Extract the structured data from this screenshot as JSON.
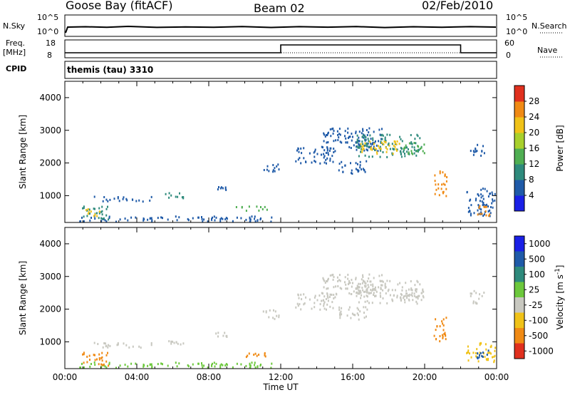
{
  "header": {
    "station": "Goose Bay (fitACF)",
    "beam": "Beam 02",
    "date": "02/Feb/2010"
  },
  "info_panels": {
    "nsky_label": "N.Sky",
    "nsky_ticks": [
      "10^5",
      "10^0"
    ],
    "nsearch_label": "N.Search",
    "nsearch_ticks": [
      "10^5",
      "10^0"
    ],
    "freq_label": "Freq.",
    "freq_unit": "[MHz]",
    "freq_ticks": [
      "18",
      "8"
    ],
    "nave_label": "Nave",
    "nave_ticks": [
      "60",
      "0"
    ],
    "cpid_label": "CPID",
    "cpid_value": "themis (tau) 3310",
    "freq_trace": [
      {
        "t": 0,
        "mhz": 10.3
      },
      {
        "t": 12,
        "mhz": 10.3
      },
      {
        "t": 12,
        "mhz": 15.8
      },
      {
        "t": 22,
        "mhz": 15.8
      },
      {
        "t": 22,
        "mhz": 10.3
      },
      {
        "t": 24,
        "mhz": 10.3
      }
    ]
  },
  "chart_data": [
    {
      "type": "heatmap",
      "title": "Power",
      "ylabel": "Slant Range [km]",
      "xlabel": "",
      "x_ticks": [
        "00:00",
        "04:00",
        "08:00",
        "12:00",
        "16:00",
        "20:00",
        "00:00"
      ],
      "xlim_hours": [
        0,
        24
      ],
      "ylim": [
        180,
        4500
      ],
      "y_ticks": [
        1000,
        2000,
        3000,
        4000
      ],
      "colorbar": {
        "label": "Power [dB]",
        "tick_labels": [
          "4",
          "8",
          "12",
          "16",
          "20",
          "24",
          "28"
        ],
        "colors": [
          "#1a20e6",
          "#1f5aa8",
          "#2e8a7c",
          "#4fae52",
          "#a8d02c",
          "#f0c218",
          "#f08a14",
          "#e0301e"
        ]
      },
      "regions": [
        {
          "t0": 0.8,
          "t1": 11.5,
          "r0": 230,
          "r1": 400,
          "color": "#1f5aa8"
        },
        {
          "t0": 0.9,
          "t1": 2.4,
          "r0": 300,
          "r1": 700,
          "color": "#2e8a7c"
        },
        {
          "t0": 1.1,
          "t1": 1.9,
          "r0": 400,
          "r1": 650,
          "color": "#f0c218"
        },
        {
          "t0": 1.6,
          "t1": 4.8,
          "r0": 850,
          "r1": 1000,
          "color": "#1f5aa8"
        },
        {
          "t0": 5.3,
          "t1": 6.6,
          "r0": 950,
          "r1": 1120,
          "color": "#2e8a7c"
        },
        {
          "t0": 8.2,
          "t1": 9.0,
          "r0": 1180,
          "r1": 1320,
          "color": "#1f5aa8"
        },
        {
          "t0": 9.5,
          "t1": 11.3,
          "r0": 560,
          "r1": 700,
          "color": "#4fae52"
        },
        {
          "t0": 11.0,
          "t1": 11.9,
          "r0": 1700,
          "r1": 2000,
          "color": "#1f5aa8"
        },
        {
          "t0": 12.8,
          "t1": 15.0,
          "r0": 2000,
          "r1": 2500,
          "color": "#1f5aa8"
        },
        {
          "t0": 14.2,
          "t1": 17.6,
          "r0": 2400,
          "r1": 3100,
          "color": "#1f5aa8"
        },
        {
          "t0": 16.2,
          "t1": 19.8,
          "r0": 2200,
          "r1": 2900,
          "color": "#2e8a7c"
        },
        {
          "t0": 16.4,
          "t1": 18.6,
          "r0": 2300,
          "r1": 2700,
          "color": "#f0c218"
        },
        {
          "t0": 15.2,
          "t1": 16.8,
          "r0": 1700,
          "r1": 2100,
          "color": "#1f5aa8"
        },
        {
          "t0": 18.8,
          "t1": 20.0,
          "r0": 2300,
          "r1": 2650,
          "color": "#4fae52"
        },
        {
          "t0": 20.5,
          "t1": 21.2,
          "r0": 1000,
          "r1": 1800,
          "color": "#f08a14"
        },
        {
          "t0": 22.5,
          "t1": 23.3,
          "r0": 2200,
          "r1": 2600,
          "color": "#1f5aa8"
        },
        {
          "t0": 22.3,
          "t1": 23.9,
          "r0": 400,
          "r1": 1250,
          "color": "#1f5aa8"
        },
        {
          "t0": 22.9,
          "t1": 23.6,
          "r0": 400,
          "r1": 800,
          "color": "#f08a14"
        }
      ]
    },
    {
      "type": "heatmap",
      "title": "Velocity",
      "ylabel": "Slant Range [km]",
      "xlabel": "Time UT",
      "x_ticks": [
        "00:00",
        "04:00",
        "08:00",
        "12:00",
        "16:00",
        "20:00",
        "00:00"
      ],
      "xlim_hours": [
        0,
        24
      ],
      "ylim": [
        180,
        4500
      ],
      "y_ticks": [
        1000,
        2000,
        3000,
        4000
      ],
      "colorbar": {
        "label": "Velocity [m s^-1]",
        "tick_labels": [
          "1000",
          "500",
          "100",
          "25",
          "-25",
          "-100",
          "-500",
          "-1000"
        ],
        "colors": [
          "#1a20e6",
          "#1f5aa8",
          "#2e8a7c",
          "#6cc83c",
          "#c8c8c0",
          "#f0c218",
          "#f08a14",
          "#e0301e"
        ]
      },
      "regions": [
        {
          "t0": 0.8,
          "t1": 11.5,
          "r0": 230,
          "r1": 400,
          "color": "#6cc83c"
        },
        {
          "t0": 0.9,
          "t1": 2.4,
          "r0": 300,
          "r1": 700,
          "color": "#f08a14"
        },
        {
          "t0": 1.6,
          "t1": 4.8,
          "r0": 850,
          "r1": 1000,
          "color": "#c8c8c0"
        },
        {
          "t0": 5.3,
          "t1": 6.6,
          "r0": 950,
          "r1": 1120,
          "color": "#c8c8c0"
        },
        {
          "t0": 8.2,
          "t1": 9.0,
          "r0": 1180,
          "r1": 1320,
          "color": "#c8c8c0"
        },
        {
          "t0": 9.5,
          "t1": 11.3,
          "r0": 560,
          "r1": 700,
          "color": "#f08a14"
        },
        {
          "t0": 11.0,
          "t1": 11.9,
          "r0": 1700,
          "r1": 2000,
          "color": "#c8c8c0"
        },
        {
          "t0": 12.8,
          "t1": 15.0,
          "r0": 2000,
          "r1": 2500,
          "color": "#c8c8c0"
        },
        {
          "t0": 14.2,
          "t1": 17.6,
          "r0": 2400,
          "r1": 3100,
          "color": "#c8c8c0"
        },
        {
          "t0": 16.2,
          "t1": 19.8,
          "r0": 2200,
          "r1": 2900,
          "color": "#c8c8c0"
        },
        {
          "t0": 15.2,
          "t1": 16.8,
          "r0": 1700,
          "r1": 2100,
          "color": "#c8c8c0"
        },
        {
          "t0": 18.8,
          "t1": 20.0,
          "r0": 2300,
          "r1": 2650,
          "color": "#c8c8c0"
        },
        {
          "t0": 20.5,
          "t1": 21.2,
          "r0": 1000,
          "r1": 1800,
          "color": "#f08a14"
        },
        {
          "t0": 22.5,
          "t1": 23.3,
          "r0": 2200,
          "r1": 2600,
          "color": "#c8c8c0"
        },
        {
          "t0": 22.3,
          "t1": 23.9,
          "r0": 400,
          "r1": 1000,
          "color": "#f0c218"
        },
        {
          "t0": 22.8,
          "t1": 23.6,
          "r0": 500,
          "r1": 800,
          "color": "#1f5aa8"
        }
      ]
    }
  ]
}
